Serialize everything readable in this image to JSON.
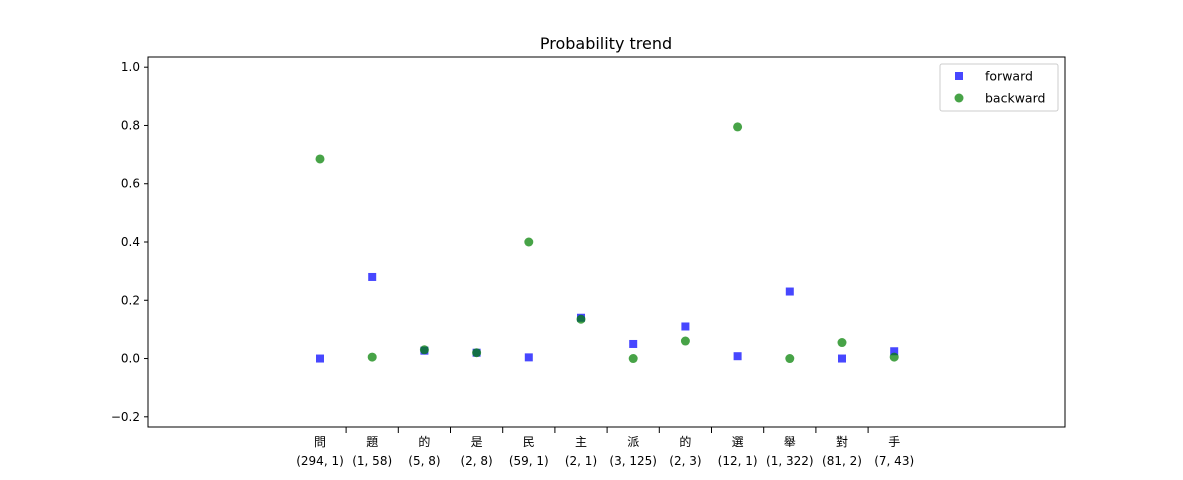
{
  "chart_data": {
    "type": "scatter",
    "title": "Probability trend",
    "xlabel": "",
    "ylabel": "",
    "ylim": [
      -0.235,
      1.035
    ],
    "yticks": [
      "−0.2",
      "0.0",
      "0.2",
      "0.4",
      "0.6",
      "0.8",
      "1.0"
    ],
    "ytick_values": [
      -0.2,
      0.0,
      0.2,
      0.4,
      0.6,
      0.8,
      1.0
    ],
    "categories": [
      "問",
      "題",
      "的",
      "是",
      "民",
      "主",
      "派",
      "的",
      "選",
      "舉",
      "對",
      "手"
    ],
    "sublabels": [
      "(294, 1)",
      "(1, 58)",
      "(5, 8)",
      "(2, 8)",
      "(59, 1)",
      "(2, 1)",
      "(3, 125)",
      "(2, 3)",
      "(12, 1)",
      "(1, 322)",
      "(81, 2)",
      "(7, 43)"
    ],
    "grid": false,
    "legend_position": "top-right",
    "series": [
      {
        "name": "forward",
        "marker": "square",
        "color": "#0000ff",
        "values": [
          0.0,
          0.28,
          0.027,
          0.02,
          0.004,
          0.14,
          0.05,
          0.11,
          0.008,
          0.23,
          0.0,
          0.025
        ]
      },
      {
        "name": "backward",
        "marker": "circle",
        "color": "#008000",
        "values": [
          0.685,
          0.005,
          0.03,
          0.02,
          0.4,
          0.135,
          0.0,
          0.06,
          0.795,
          0.0,
          0.055,
          0.005
        ]
      }
    ]
  }
}
